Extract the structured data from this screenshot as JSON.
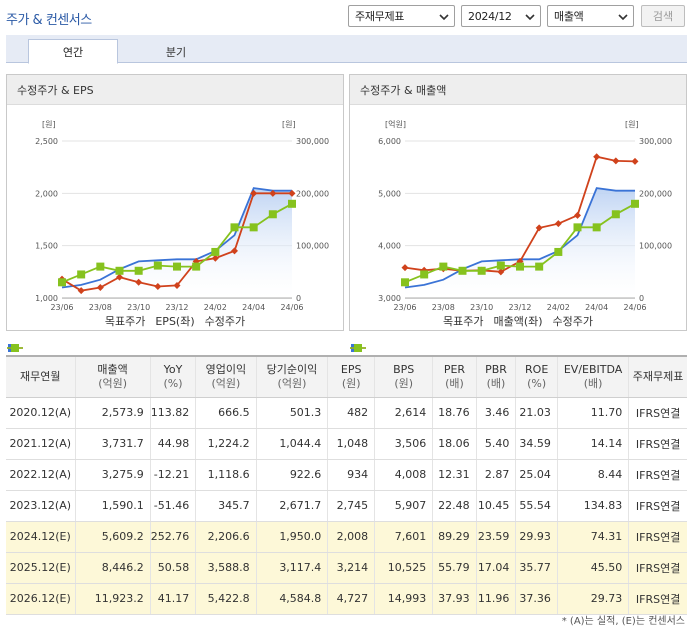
{
  "header": {
    "title": "주가 & 컨센서스",
    "select_account": "주재무제표",
    "select_period": "2024/12",
    "select_metric": "매출액",
    "search_label": "검색"
  },
  "tabs": [
    {
      "label": "연간",
      "active": true
    },
    {
      "label": "분기",
      "active": false
    }
  ],
  "charts": [
    {
      "title": "수정주가 & EPS",
      "left_unit": "[원]",
      "right_unit": "[원]",
      "legend": [
        "목표주가",
        "EPS(좌)",
        "수정주가"
      ],
      "chart_data": {
        "type": "line",
        "categories": [
          "23/06",
          "23/07",
          "23/08",
          "23/09",
          "23/10",
          "23/11",
          "23/12",
          "24/01",
          "24/02",
          "24/03",
          "24/04",
          "24/05",
          "24/06"
        ],
        "x_tick_labels": [
          "23/06",
          "23/08",
          "23/10",
          "23/12",
          "24/02",
          "24/04",
          "24/06"
        ],
        "y_left": {
          "min": 1000,
          "max": 2500,
          "ticks": [
            "1,000",
            "1,500",
            "2,000",
            "2,500"
          ]
        },
        "y_right": {
          "min": 0,
          "max": 300000,
          "ticks": [
            "0",
            "100,000",
            "200,000",
            "300,000"
          ]
        },
        "series": [
          {
            "name": "목표주가",
            "axis": "right",
            "color": "#3a73d6",
            "area": true,
            "values": [
              20000,
              25000,
              35000,
              55000,
              70000,
              72000,
              74000,
              74000,
              90000,
              120000,
              210000,
              205000,
              205000
            ]
          },
          {
            "name": "EPS(좌)",
            "axis": "left",
            "color": "#d0421c",
            "values": [
              1180,
              1070,
              1100,
              1200,
              1150,
              1110,
              1120,
              1350,
              1380,
              1450,
              2000,
              2000,
              2000
            ]
          },
          {
            "name": "수정주가",
            "axis": "right",
            "color": "#86c21e",
            "values": [
              30000,
              45000,
              60000,
              52000,
              52000,
              62000,
              60000,
              60000,
              88000,
              135000,
              135000,
              160000,
              180000
            ]
          }
        ]
      }
    },
    {
      "title": "수정주가 & 매출액",
      "left_unit": "[억원]",
      "right_unit": "[원]",
      "legend": [
        "목표주가",
        "매출액(좌)",
        "수정주가"
      ],
      "chart_data": {
        "type": "line",
        "categories": [
          "23/06",
          "23/07",
          "23/08",
          "23/09",
          "23/10",
          "23/11",
          "23/12",
          "24/01",
          "24/02",
          "24/03",
          "24/04",
          "24/05",
          "24/06"
        ],
        "x_tick_labels": [
          "23/06",
          "23/08",
          "23/10",
          "23/12",
          "24/02",
          "24/04",
          "24/06"
        ],
        "y_left": {
          "min": 3000,
          "max": 6000,
          "ticks": [
            "3,000",
            "4,000",
            "5,000",
            "6,000"
          ]
        },
        "y_right": {
          "min": 0,
          "max": 300000,
          "ticks": [
            "0",
            "100,000",
            "200,000",
            "300,000"
          ]
        },
        "series": [
          {
            "name": "목표주가",
            "axis": "right",
            "color": "#3a73d6",
            "area": true,
            "values": [
              20000,
              25000,
              35000,
              55000,
              70000,
              72000,
              74000,
              74000,
              90000,
              120000,
              210000,
              205000,
              205000
            ]
          },
          {
            "name": "매출액(좌)",
            "axis": "left",
            "color": "#d0421c",
            "values": [
              3580,
              3530,
              3560,
              3520,
              3530,
              3500,
              3700,
              4340,
              4420,
              4580,
              5700,
              5620,
              5610
            ]
          },
          {
            "name": "수정주가",
            "axis": "right",
            "color": "#86c21e",
            "values": [
              30000,
              45000,
              60000,
              52000,
              52000,
              62000,
              60000,
              60000,
              88000,
              135000,
              135000,
              160000,
              180000
            ]
          }
        ]
      }
    }
  ],
  "table": {
    "headers": [
      {
        "label": "재무연월",
        "unit": ""
      },
      {
        "label": "매출액",
        "unit": "(억원)"
      },
      {
        "label": "YoY",
        "unit": "(%)"
      },
      {
        "label": "영업이익",
        "unit": "(억원)"
      },
      {
        "label": "당기순이익",
        "unit": "(억원)"
      },
      {
        "label": "EPS",
        "unit": "(원)"
      },
      {
        "label": "BPS",
        "unit": "(원)"
      },
      {
        "label": "PER",
        "unit": "(배)"
      },
      {
        "label": "PBR",
        "unit": "(배)"
      },
      {
        "label": "ROE",
        "unit": "(%)"
      },
      {
        "label": "EV/EBITDA",
        "unit": "(배)"
      },
      {
        "label": "주재무제표",
        "unit": ""
      }
    ],
    "rows": [
      {
        "estimate": false,
        "cells": [
          "2020.12(A)",
          "2,573.9",
          "113.82",
          "666.5",
          "501.3",
          "482",
          "2,614",
          "18.76",
          "3.46",
          "21.03",
          "11.70",
          "IFRS연결"
        ]
      },
      {
        "estimate": false,
        "cells": [
          "2021.12(A)",
          "3,731.7",
          "44.98",
          "1,224.2",
          "1,044.4",
          "1,048",
          "3,506",
          "18.06",
          "5.40",
          "34.59",
          "14.14",
          "IFRS연결"
        ]
      },
      {
        "estimate": false,
        "cells": [
          "2022.12(A)",
          "3,275.9",
          "-12.21",
          "1,118.6",
          "922.6",
          "934",
          "4,008",
          "12.31",
          "2.87",
          "25.04",
          "8.44",
          "IFRS연결"
        ]
      },
      {
        "estimate": false,
        "cells": [
          "2023.12(A)",
          "1,590.1",
          "-51.46",
          "345.7",
          "2,671.7",
          "2,745",
          "5,907",
          "22.48",
          "10.45",
          "55.54",
          "134.83",
          "IFRS연결"
        ]
      },
      {
        "estimate": true,
        "cells": [
          "2024.12(E)",
          "5,609.2",
          "252.76",
          "2,206.6",
          "1,950.0",
          "2,008",
          "7,601",
          "89.29",
          "23.59",
          "29.93",
          "74.31",
          "IFRS연결"
        ]
      },
      {
        "estimate": true,
        "cells": [
          "2025.12(E)",
          "8,446.2",
          "50.58",
          "3,588.8",
          "3,117.4",
          "3,214",
          "10,525",
          "55.79",
          "17.04",
          "35.77",
          "45.50",
          "IFRS연결"
        ]
      },
      {
        "estimate": true,
        "cells": [
          "2026.12(E)",
          "11,923.2",
          "41.17",
          "5,422.8",
          "4,584.8",
          "4,727",
          "14,993",
          "37.93",
          "11.96",
          "37.36",
          "29.73",
          "IFRS연결"
        ]
      }
    ]
  },
  "footnote": "* (A)는 실적, (E)는 컨센서스"
}
